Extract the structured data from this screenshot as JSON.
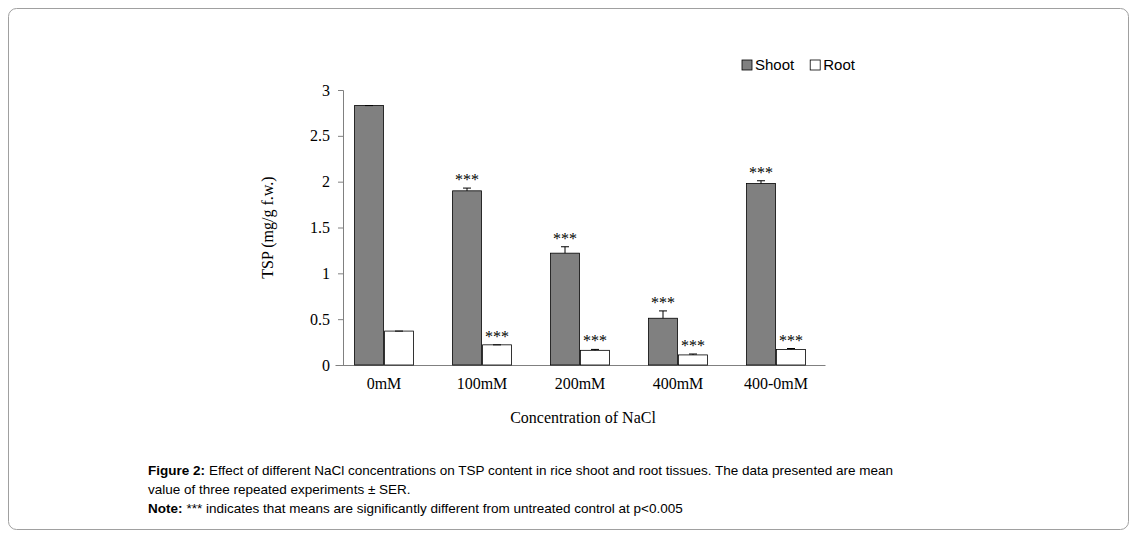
{
  "chart_data": {
    "type": "bar",
    "x_label": "Concentration of NaCl",
    "y_label": "TSP (mg/g f.w.)",
    "categories": [
      "0mM",
      "100mM",
      "200mM",
      "400mM",
      "400-0mM"
    ],
    "series": [
      {
        "name": "Shoot",
        "color": "#808080",
        "values": [
          2.83,
          1.9,
          1.22,
          0.51,
          1.98
        ],
        "errors": [
          0,
          0.03,
          0.07,
          0.08,
          0.03
        ],
        "significance": [
          null,
          "***",
          "***",
          "***",
          "***"
        ]
      },
      {
        "name": "Root",
        "color": "#ffffff",
        "values": [
          0.37,
          0.22,
          0.16,
          0.11,
          0.17
        ],
        "errors": [
          0,
          0,
          0.01,
          0.01,
          0.01
        ],
        "significance": [
          null,
          "***",
          "***",
          "***",
          "***"
        ]
      }
    ],
    "ylim": [
      0,
      3
    ],
    "yticks": [
      0,
      0.5,
      1,
      1.5,
      2,
      2.5,
      3
    ],
    "grid": false,
    "legend": "top-right",
    "caption": {
      "label": "Figure 2:",
      "lines": [
        "Effect of  different NaCl concentrations on TSP content in rice shoot and root tissues. The data presented are mean",
        "value of three repeated experiments ± SER."
      ]
    },
    "note": {
      "label": "Note:",
      "text": "*** indicates that means are significantly different from untreated control at p<0.005"
    }
  }
}
